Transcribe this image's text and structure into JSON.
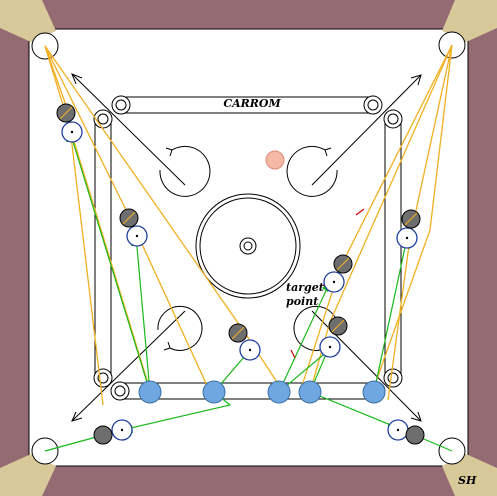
{
  "title": "CARROM",
  "annotation": [
    "target",
    "point"
  ],
  "signature": "SH",
  "colors": {
    "frame": "#956b73",
    "corner_wedge": "#d8c99a",
    "board": "#ffffff",
    "line": "#000000",
    "aim_path": "#1ab81a",
    "rebound_path": "#f0b020",
    "ghost_ring": "#1f3f9f",
    "striker": "#6fa8e0",
    "coin": "#6e6e6e",
    "queen": "#f4b8a6",
    "marker": "#cc0000"
  }
}
